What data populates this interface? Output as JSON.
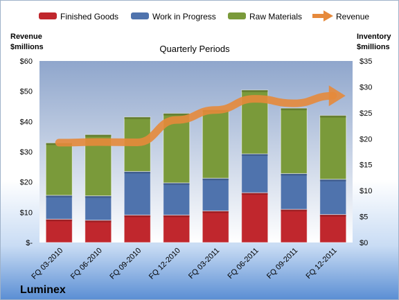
{
  "company": "Luminex",
  "colors": {
    "finished_goods": "#c0272d",
    "work_in_progress": "#4f73ad",
    "raw_materials": "#7a9a3a",
    "revenue": "#e6893b"
  },
  "chart_data": {
    "type": "bar",
    "stacked": true,
    "title": "Quarterly Periods",
    "ylabel": "Revenue\n$millions",
    "y2label": "Inventory\n$millions",
    "ylim": [
      0,
      60
    ],
    "y2lim": [
      0,
      35
    ],
    "yticks": [
      "$-",
      "$10",
      "$20",
      "$30",
      "$40",
      "$50",
      "$60"
    ],
    "y2ticks": [
      "$0",
      "$5",
      "$10",
      "$15",
      "$20",
      "$25",
      "$30",
      "$35"
    ],
    "categories": [
      "FQ 03-2010",
      "FQ 06-2010",
      "FQ 09-2010",
      "FQ 12-2010",
      "FQ 03-2011",
      "FQ 06-2011",
      "FQ 09-2011",
      "FQ 12-2011"
    ],
    "series": [
      {
        "name": "Finished Goods",
        "axis": "inventory",
        "values": [
          4.5,
          4.3,
          5.3,
          5.3,
          6.1,
          9.6,
          6.4,
          5.4
        ]
      },
      {
        "name": "Work in Progress",
        "axis": "inventory",
        "values": [
          4.6,
          4.7,
          8.4,
          6.2,
          6.3,
          7.5,
          6.9,
          6.8
        ]
      },
      {
        "name": "Raw Materials",
        "axis": "inventory",
        "values": [
          10.1,
          11.8,
          10.5,
          13.4,
          13.2,
          12.3,
          12.6,
          12.3
        ]
      },
      {
        "name": "Revenue",
        "axis": "revenue",
        "type": "line",
        "values": [
          33.0,
          33.2,
          33.1,
          40.5,
          43.8,
          47.5,
          46.0,
          48.5
        ]
      }
    ],
    "legend": "top",
    "grid": false
  }
}
